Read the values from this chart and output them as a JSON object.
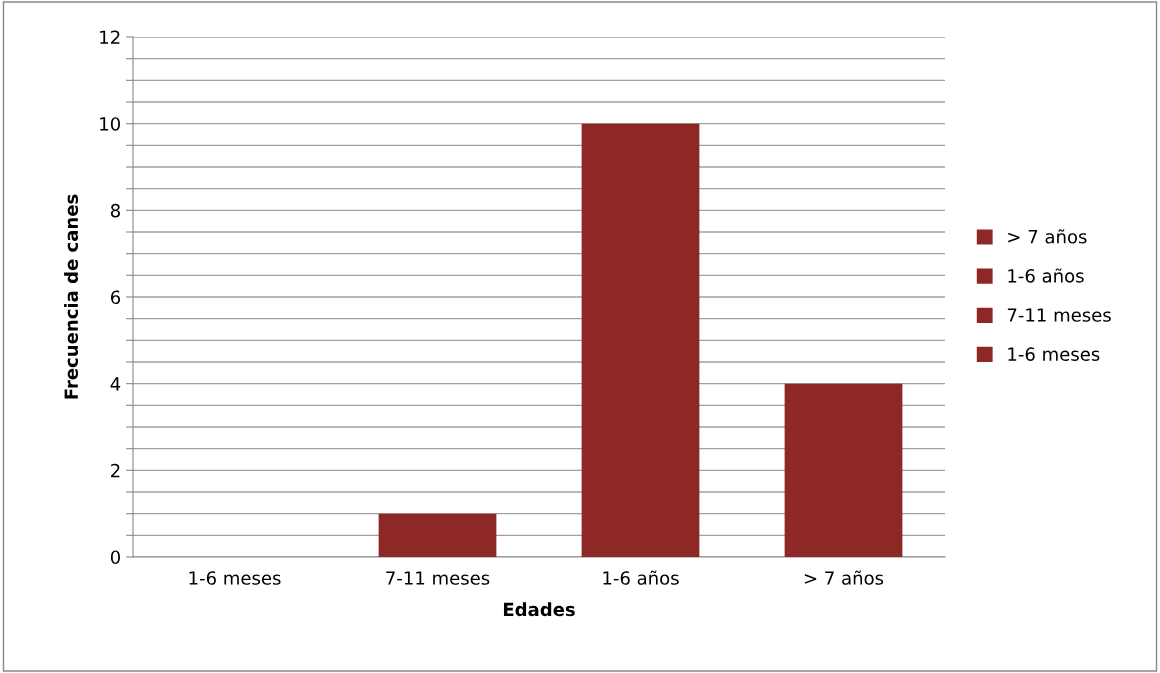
{
  "chart_data": {
    "type": "bar",
    "stacked": true,
    "xlabel": "Edades",
    "ylabel": "Frecuencia de canes",
    "categories": [
      "1-6 meses",
      "7-11 meses",
      "1-6 años",
      "> 7 años"
    ],
    "series": [
      {
        "name": "1-6 meses",
        "color": "#8e2826",
        "values": [
          0,
          null,
          null,
          null
        ]
      },
      {
        "name": "7-11 meses",
        "color": "#8e2826",
        "values": [
          null,
          1,
          null,
          null
        ]
      },
      {
        "name": "1-6 años",
        "color": "#8e2826",
        "values": [
          null,
          null,
          10,
          null
        ]
      },
      {
        "name": "> 7 años",
        "color": "#8e2826",
        "values": [
          null,
          null,
          null,
          4
        ]
      }
    ],
    "ylim": [
      0,
      12
    ],
    "yticks": [
      0,
      {
        "value": 0.5,
        "label": null
      },
      {
        "value": 1,
        "label": null
      },
      {
        "value": 1.5,
        "label": null
      },
      2,
      {
        "value": 2.5,
        "label": null
      },
      {
        "value": 3,
        "label": null
      },
      {
        "value": 3.5,
        "label": null
      },
      4,
      {
        "value": 4.5,
        "label": null
      },
      {
        "value": 5,
        "label": null
      },
      {
        "value": 5.5,
        "label": null
      },
      6,
      {
        "value": 6.5,
        "label": null
      },
      {
        "value": 7,
        "label": null
      },
      {
        "value": 7.5,
        "label": null
      },
      8,
      {
        "value": 8.5,
        "label": null
      },
      {
        "value": 9,
        "label": null
      },
      {
        "value": 9.5,
        "label": null
      },
      10,
      {
        "value": 10.5,
        "label": null
      },
      {
        "value": 11,
        "label": null
      },
      {
        "value": 11.5,
        "label": null
      },
      12
    ],
    "grid": "y",
    "legend": "right"
  }
}
